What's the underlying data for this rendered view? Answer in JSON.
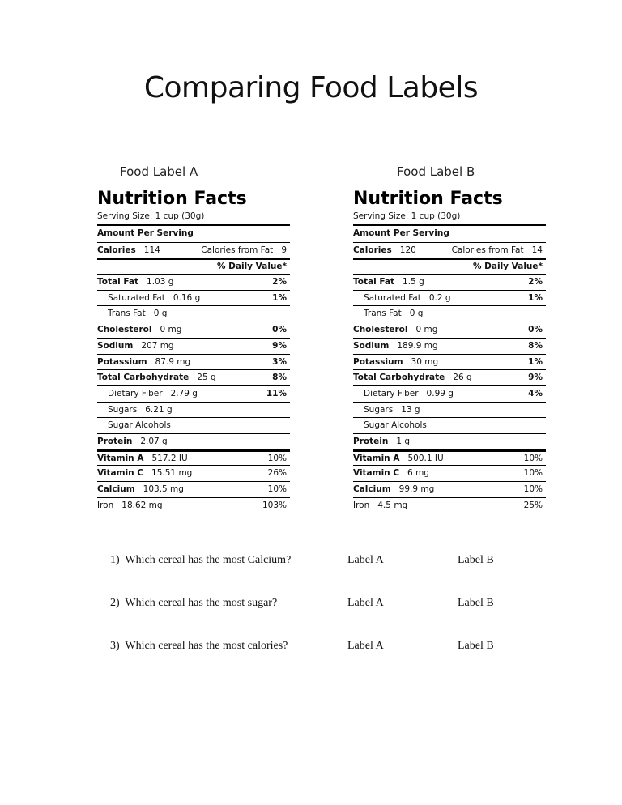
{
  "title": "Comparing Food Labels",
  "labels": [
    {
      "caption": "Food Label A",
      "nf_title": "Nutrition Facts",
      "serving": "Serving Size: 1 cup (30g)",
      "amount_per_serving": "Amount Per Serving",
      "calories_label": "Calories",
      "calories_value": "114",
      "calories_from_fat": "Calories from Fat",
      "calories_from_fat_value": "9",
      "daily_value_header": "% Daily Value*",
      "total_fat": {
        "label": "Total Fat",
        "value": "1.03 g",
        "pct": "2%"
      },
      "sat_fat": {
        "label": "Saturated Fat",
        "value": "0.16 g",
        "pct": "1%"
      },
      "trans_fat": {
        "label": "Trans Fat",
        "value": "0 g"
      },
      "cholesterol": {
        "label": "Cholesterol",
        "value": "0 mg",
        "pct": "0%"
      },
      "sodium": {
        "label": "Sodium",
        "value": "207 mg",
        "pct": "9%"
      },
      "potassium": {
        "label": "Potassium",
        "value": "87.9 mg",
        "pct": "3%"
      },
      "carbs": {
        "label": "Total Carbohydrate",
        "value": "25 g",
        "pct": "8%"
      },
      "fiber": {
        "label": "Dietary Fiber",
        "value": "2.79 g",
        "pct": "11%"
      },
      "sugars": {
        "label": "Sugars",
        "value": "6.21 g"
      },
      "sugar_alcohols": {
        "label": "Sugar Alcohols"
      },
      "protein": {
        "label": "Protein",
        "value": "2.07 g"
      },
      "vit_a": {
        "label": "Vitamin A",
        "value": "517.2 IU",
        "pct": "10%"
      },
      "vit_c": {
        "label": "Vitamin C",
        "value": "15.51 mg",
        "pct": "26%"
      },
      "calcium": {
        "label": "Calcium",
        "value": "103.5 mg",
        "pct": "10%"
      },
      "iron": {
        "label": "Iron",
        "value": "18.62 mg",
        "pct": "103%"
      }
    },
    {
      "caption": "Food Label B",
      "nf_title": "Nutrition Facts",
      "serving": "Serving Size: 1 cup (30g)",
      "amount_per_serving": "Amount Per Serving",
      "calories_label": "Calories",
      "calories_value": "120",
      "calories_from_fat": "Calories from Fat",
      "calories_from_fat_value": "14",
      "daily_value_header": "% Daily Value*",
      "total_fat": {
        "label": "Total Fat",
        "value": "1.5 g",
        "pct": "2%"
      },
      "sat_fat": {
        "label": "Saturated Fat",
        "value": "0.2 g",
        "pct": "1%"
      },
      "trans_fat": {
        "label": "Trans Fat",
        "value": "0 g"
      },
      "cholesterol": {
        "label": "Cholesterol",
        "value": "0 mg",
        "pct": "0%"
      },
      "sodium": {
        "label": "Sodium",
        "value": "189.9 mg",
        "pct": "8%"
      },
      "potassium": {
        "label": "Potassium",
        "value": "30 mg",
        "pct": "1%"
      },
      "carbs": {
        "label": "Total Carbohydrate",
        "value": "26 g",
        "pct": "9%"
      },
      "fiber": {
        "label": "Dietary Fiber",
        "value": "0.99 g",
        "pct": "4%"
      },
      "sugars": {
        "label": "Sugars",
        "value": "13 g"
      },
      "sugar_alcohols": {
        "label": "Sugar Alcohols"
      },
      "protein": {
        "label": "Protein",
        "value": "1 g"
      },
      "vit_a": {
        "label": "Vitamin A",
        "value": "500.1 IU",
        "pct": "10%"
      },
      "vit_c": {
        "label": "Vitamin C",
        "value": "6 mg",
        "pct": "10%"
      },
      "calcium": {
        "label": "Calcium",
        "value": "99.9 mg",
        "pct": "10%"
      },
      "iron": {
        "label": "Iron",
        "value": "4.5 mg",
        "pct": "25%"
      }
    }
  ],
  "questions": [
    {
      "num": "1)",
      "text": "Which cereal has the most Calcium?",
      "option_a": "Label A",
      "option_b": "Label B"
    },
    {
      "num": "2)",
      "text": "Which cereal has the most sugar?",
      "option_a": "Label A",
      "option_b": "Label B"
    },
    {
      "num": "3)",
      "text": "Which cereal has the most calories?",
      "option_a": "Label A",
      "option_b": "Label B"
    }
  ]
}
